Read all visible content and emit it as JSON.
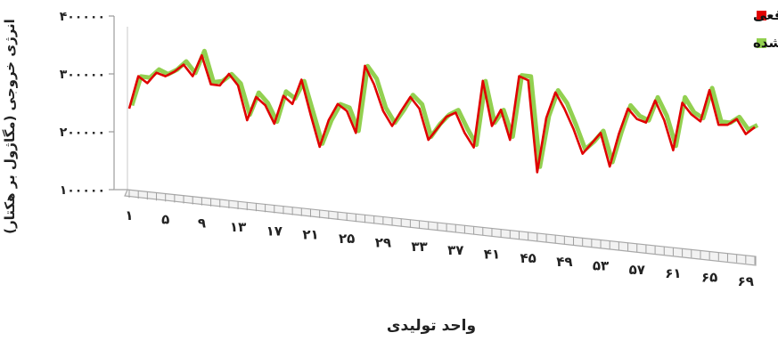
{
  "chart_data": {
    "type": "line",
    "xlabel": "واحد تولیدی",
    "ylabel": "انرژی خروجی (مگاژول بر هکتار)",
    "x_tick_labels": [
      "۱",
      "۵",
      "۹",
      "۱۳",
      "۱۷",
      "۲۱",
      "۲۵",
      "۲۹",
      "۳۳",
      "۳۷",
      "۴۱",
      "۴۵",
      "۴۹",
      "۵۳",
      "۵۷",
      "۶۱",
      "۶۵",
      "۶۹"
    ],
    "y_tick_labels": [
      "۱۰۰۰۰۰",
      "۲۰۰۰۰۰",
      "۳۰۰۰۰۰",
      "۴۰۰۰۰۰"
    ],
    "ylim": [
      100000,
      400000
    ],
    "grid": false,
    "legend_position": "top-right",
    "series": [
      {
        "name": "مقدار واقعی",
        "color": "#e00000",
        "values": [
          240000,
          296000,
          284000,
          302000,
          296000,
          304000,
          316000,
          296000,
          332000,
          282000,
          280000,
          300000,
          280000,
          220000,
          260000,
          246000,
          214000,
          262000,
          248000,
          290000,
          230000,
          174000,
          220000,
          248000,
          236000,
          198000,
          314000,
          282000,
          236000,
          210000,
          236000,
          260000,
          240000,
          186000,
          206000,
          226000,
          233000,
          198000,
          173000,
          288000,
          210000,
          238000,
          186000,
          296000,
          289000,
          130000,
          224000,
          268000,
          240000,
          205000,
          162000,
          180000,
          198000,
          140000,
          196000,
          240000,
          222000,
          216000,
          254000,
          220000,
          168000,
          250000,
          230000,
          218000,
          272000,
          212000,
          212000,
          222000,
          196000,
          208000
        ]
      },
      {
        "name": "مقدار پیش بینی شده",
        "color": "#92d050",
        "values": [
          244000,
          294000,
          292000,
          306000,
          298000,
          306000,
          320000,
          300000,
          338000,
          284000,
          286000,
          298000,
          282000,
          228000,
          266000,
          248000,
          216000,
          268000,
          256000,
          286000,
          232000,
          178000,
          218000,
          246000,
          240000,
          200000,
          312000,
          290000,
          240000,
          214000,
          236000,
          262000,
          246000,
          190000,
          212000,
          228000,
          236000,
          204000,
          176000,
          286000,
          214000,
          236000,
          190000,
          296000,
          294000,
          138000,
          226000,
          270000,
          248000,
          210000,
          168000,
          182000,
          200000,
          146000,
          198000,
          244000,
          226000,
          218000,
          258000,
          226000,
          174000,
          258000,
          232000,
          222000,
          274000,
          216000,
          214000,
          224000,
          202000,
          210000
        ]
      }
    ]
  }
}
